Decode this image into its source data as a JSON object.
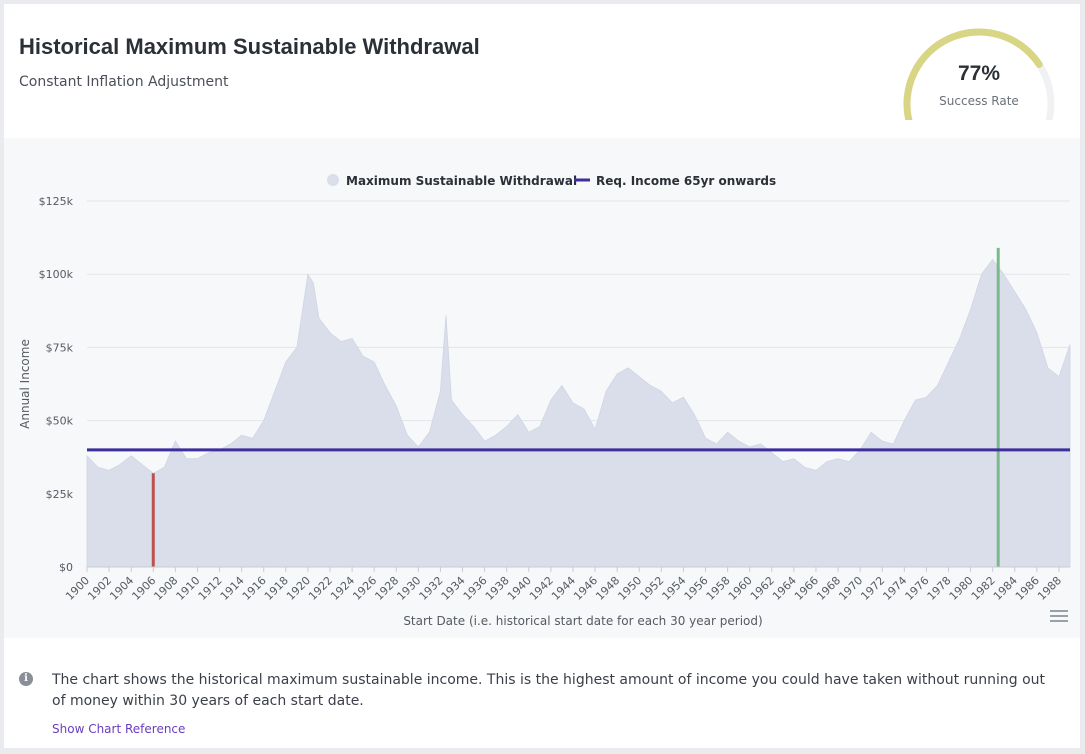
{
  "header": {
    "title": "Historical Maximum Sustainable Withdrawal",
    "subtitle": "Constant Inflation Adjustment"
  },
  "gauge": {
    "value": 0.77,
    "value_label": "77%",
    "label": "Success Rate",
    "color": "#d8d585",
    "track_color": "#f0f1f3"
  },
  "chart_data": {
    "type": "area",
    "legend": [
      "Maximum Sustainable Withdrawal",
      "Req. Income 65yr onwards"
    ],
    "legend_placement": "top-center",
    "xlabel": "Start Date (i.e. historical start date for each 30 year period)",
    "ylabel": "Annual Income",
    "x_ticks": [
      "1900",
      "1902",
      "1904",
      "1906",
      "1908",
      "1910",
      "1912",
      "1914",
      "1916",
      "1918",
      "1920",
      "1922",
      "1924",
      "1926",
      "1928",
      "1930",
      "1932",
      "1934",
      "1936",
      "1938",
      "1940",
      "1942",
      "1944",
      "1946",
      "1948",
      "1950",
      "1952",
      "1954",
      "1956",
      "1958",
      "1960",
      "1962",
      "1964",
      "1966",
      "1968",
      "1970",
      "1972",
      "1974",
      "1976",
      "1978",
      "1980",
      "1982",
      "1984",
      "1986",
      "1988"
    ],
    "y_ticks": [
      "$0",
      "$25k",
      "$50k",
      "$75k",
      "$100k",
      "$125k"
    ],
    "ylim": [
      0,
      125000
    ],
    "xlim": [
      1900,
      1989
    ],
    "series": [
      {
        "name": "Maximum Sustainable Withdrawal",
        "color": "#d9deea",
        "x": [
          1900,
          1901,
          1902,
          1903,
          1904,
          1905,
          1906,
          1907,
          1908,
          1909,
          1910,
          1911,
          1912,
          1913,
          1914,
          1915,
          1916,
          1917,
          1918,
          1919,
          1920,
          1920.5,
          1921,
          1922,
          1923,
          1924,
          1925,
          1926,
          1927,
          1928,
          1929,
          1930,
          1931,
          1932,
          1932.5,
          1933,
          1934,
          1935,
          1936,
          1937,
          1938,
          1939,
          1940,
          1941,
          1942,
          1943,
          1944,
          1945,
          1946,
          1947,
          1948,
          1949,
          1950,
          1951,
          1952,
          1953,
          1954,
          1955,
          1956,
          1957,
          1958,
          1959,
          1960,
          1961,
          1962,
          1963,
          1964,
          1965,
          1966,
          1967,
          1968,
          1969,
          1970,
          1971,
          1972,
          1973,
          1974,
          1975,
          1976,
          1977,
          1978,
          1979,
          1980,
          1981,
          1982,
          1983,
          1984,
          1985,
          1986,
          1987,
          1988,
          1989
        ],
        "values": [
          38000,
          34000,
          33000,
          35000,
          38000,
          35000,
          32000,
          34000,
          43000,
          37000,
          37000,
          39000,
          40000,
          42000,
          45000,
          44000,
          50000,
          60000,
          70000,
          75000,
          100000,
          97000,
          85000,
          80000,
          77000,
          78000,
          72000,
          70000,
          62000,
          55000,
          45000,
          41000,
          46000,
          60000,
          86000,
          57000,
          52000,
          48000,
          43000,
          45000,
          48000,
          52000,
          46000,
          48000,
          57000,
          62000,
          56000,
          54000,
          47000,
          60000,
          66000,
          68000,
          65000,
          62000,
          60000,
          56000,
          58000,
          52000,
          44000,
          42000,
          46000,
          43000,
          41000,
          42000,
          39000,
          36000,
          37000,
          34000,
          33000,
          36000,
          37000,
          36000,
          40000,
          46000,
          43000,
          42000,
          50000,
          57000,
          58000,
          62000,
          70000,
          78000,
          88000,
          100000,
          105000,
          100000,
          94000,
          88000,
          80000,
          68000,
          65000,
          76000
        ]
      },
      {
        "name": "Req. Income 65yr onwards",
        "color": "#3d2e9b",
        "value": 40000
      }
    ],
    "markers": [
      {
        "x": 1906,
        "value": 32000,
        "color": "#c0504d"
      },
      {
        "x": 1982.5,
        "value": 109000,
        "color": "#7cb98a"
      }
    ]
  },
  "footer": {
    "description": "The chart shows the historical maximum sustainable income. This is the highest amount of income you could have taken without running out of money within 30 years of each start date.",
    "link": "Show Chart Reference"
  },
  "icons": {
    "info": "info-icon",
    "menu": "hamburger-menu-icon"
  }
}
